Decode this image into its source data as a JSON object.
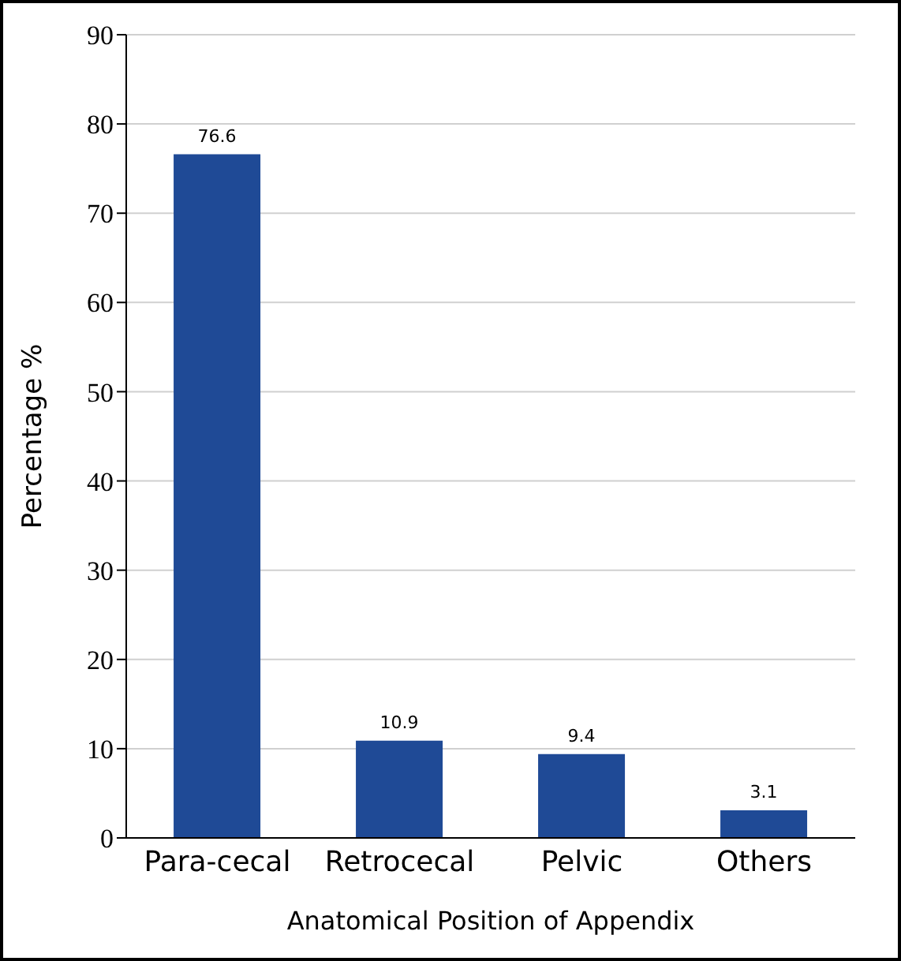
{
  "chart_data": {
    "type": "bar",
    "xlabel": "Anatomical Position of Appendix",
    "ylabel": "Percentage  %",
    "categories": [
      "Para-cecal",
      "Retrocecal",
      "Pelvic",
      "Others"
    ],
    "values": [
      76.6,
      10.9,
      9.4,
      3.1
    ],
    "color": "#1f4a96",
    "ylim": [
      0,
      90
    ],
    "yticks": [
      0,
      10,
      20,
      30,
      40,
      50,
      60,
      70,
      80,
      90
    ],
    "grid": "y",
    "data_labels": true
  }
}
